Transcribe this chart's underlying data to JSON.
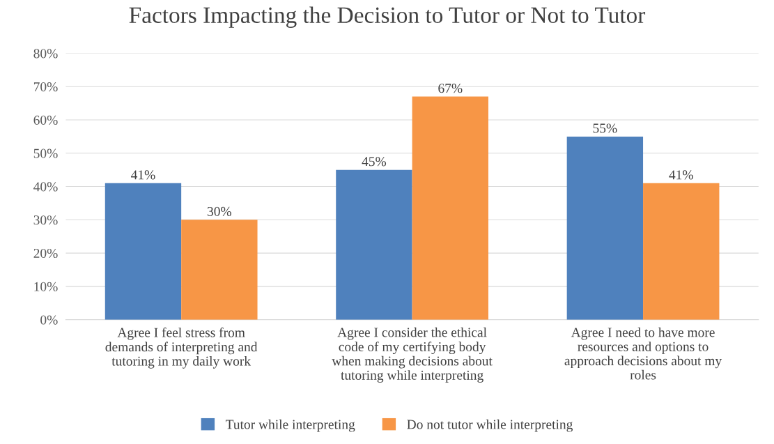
{
  "chart_data": {
    "type": "bar",
    "title": "Factors Impacting the Decision to Tutor or Not to Tutor",
    "categories": [
      "Agree I feel stress from\ndemands of interpreting and\ntutoring in my daily work",
      "Agree I consider the ethical\ncode of my certifying body\nwhen making decisions about\ntutoring while interpreting",
      "Agree I need to have more\nresources and options to\napproach decisions about my\nroles"
    ],
    "series": [
      {
        "name": "Tutor while interpreting",
        "color": "#4f81bd",
        "values": [
          41,
          45,
          55
        ],
        "value_labels": [
          "41%",
          "45%",
          "55%"
        ]
      },
      {
        "name": "Do not tutor while interpreting",
        "color": "#f79646",
        "values": [
          30,
          67,
          41
        ],
        "value_labels": [
          "30%",
          "67%",
          "41%"
        ]
      }
    ],
    "ylim": [
      0,
      80
    ],
    "yticks": [
      {
        "value": 0,
        "label": "0%"
      },
      {
        "value": 10,
        "label": "10%"
      },
      {
        "value": 20,
        "label": "20%"
      },
      {
        "value": 30,
        "label": "30%"
      },
      {
        "value": 40,
        "label": "40%"
      },
      {
        "value": 50,
        "label": "50%"
      },
      {
        "value": 60,
        "label": "60%"
      },
      {
        "value": 70,
        "label": "70%"
      },
      {
        "value": 80,
        "label": "80%"
      }
    ],
    "grid": "y",
    "legend": "bottom"
  }
}
